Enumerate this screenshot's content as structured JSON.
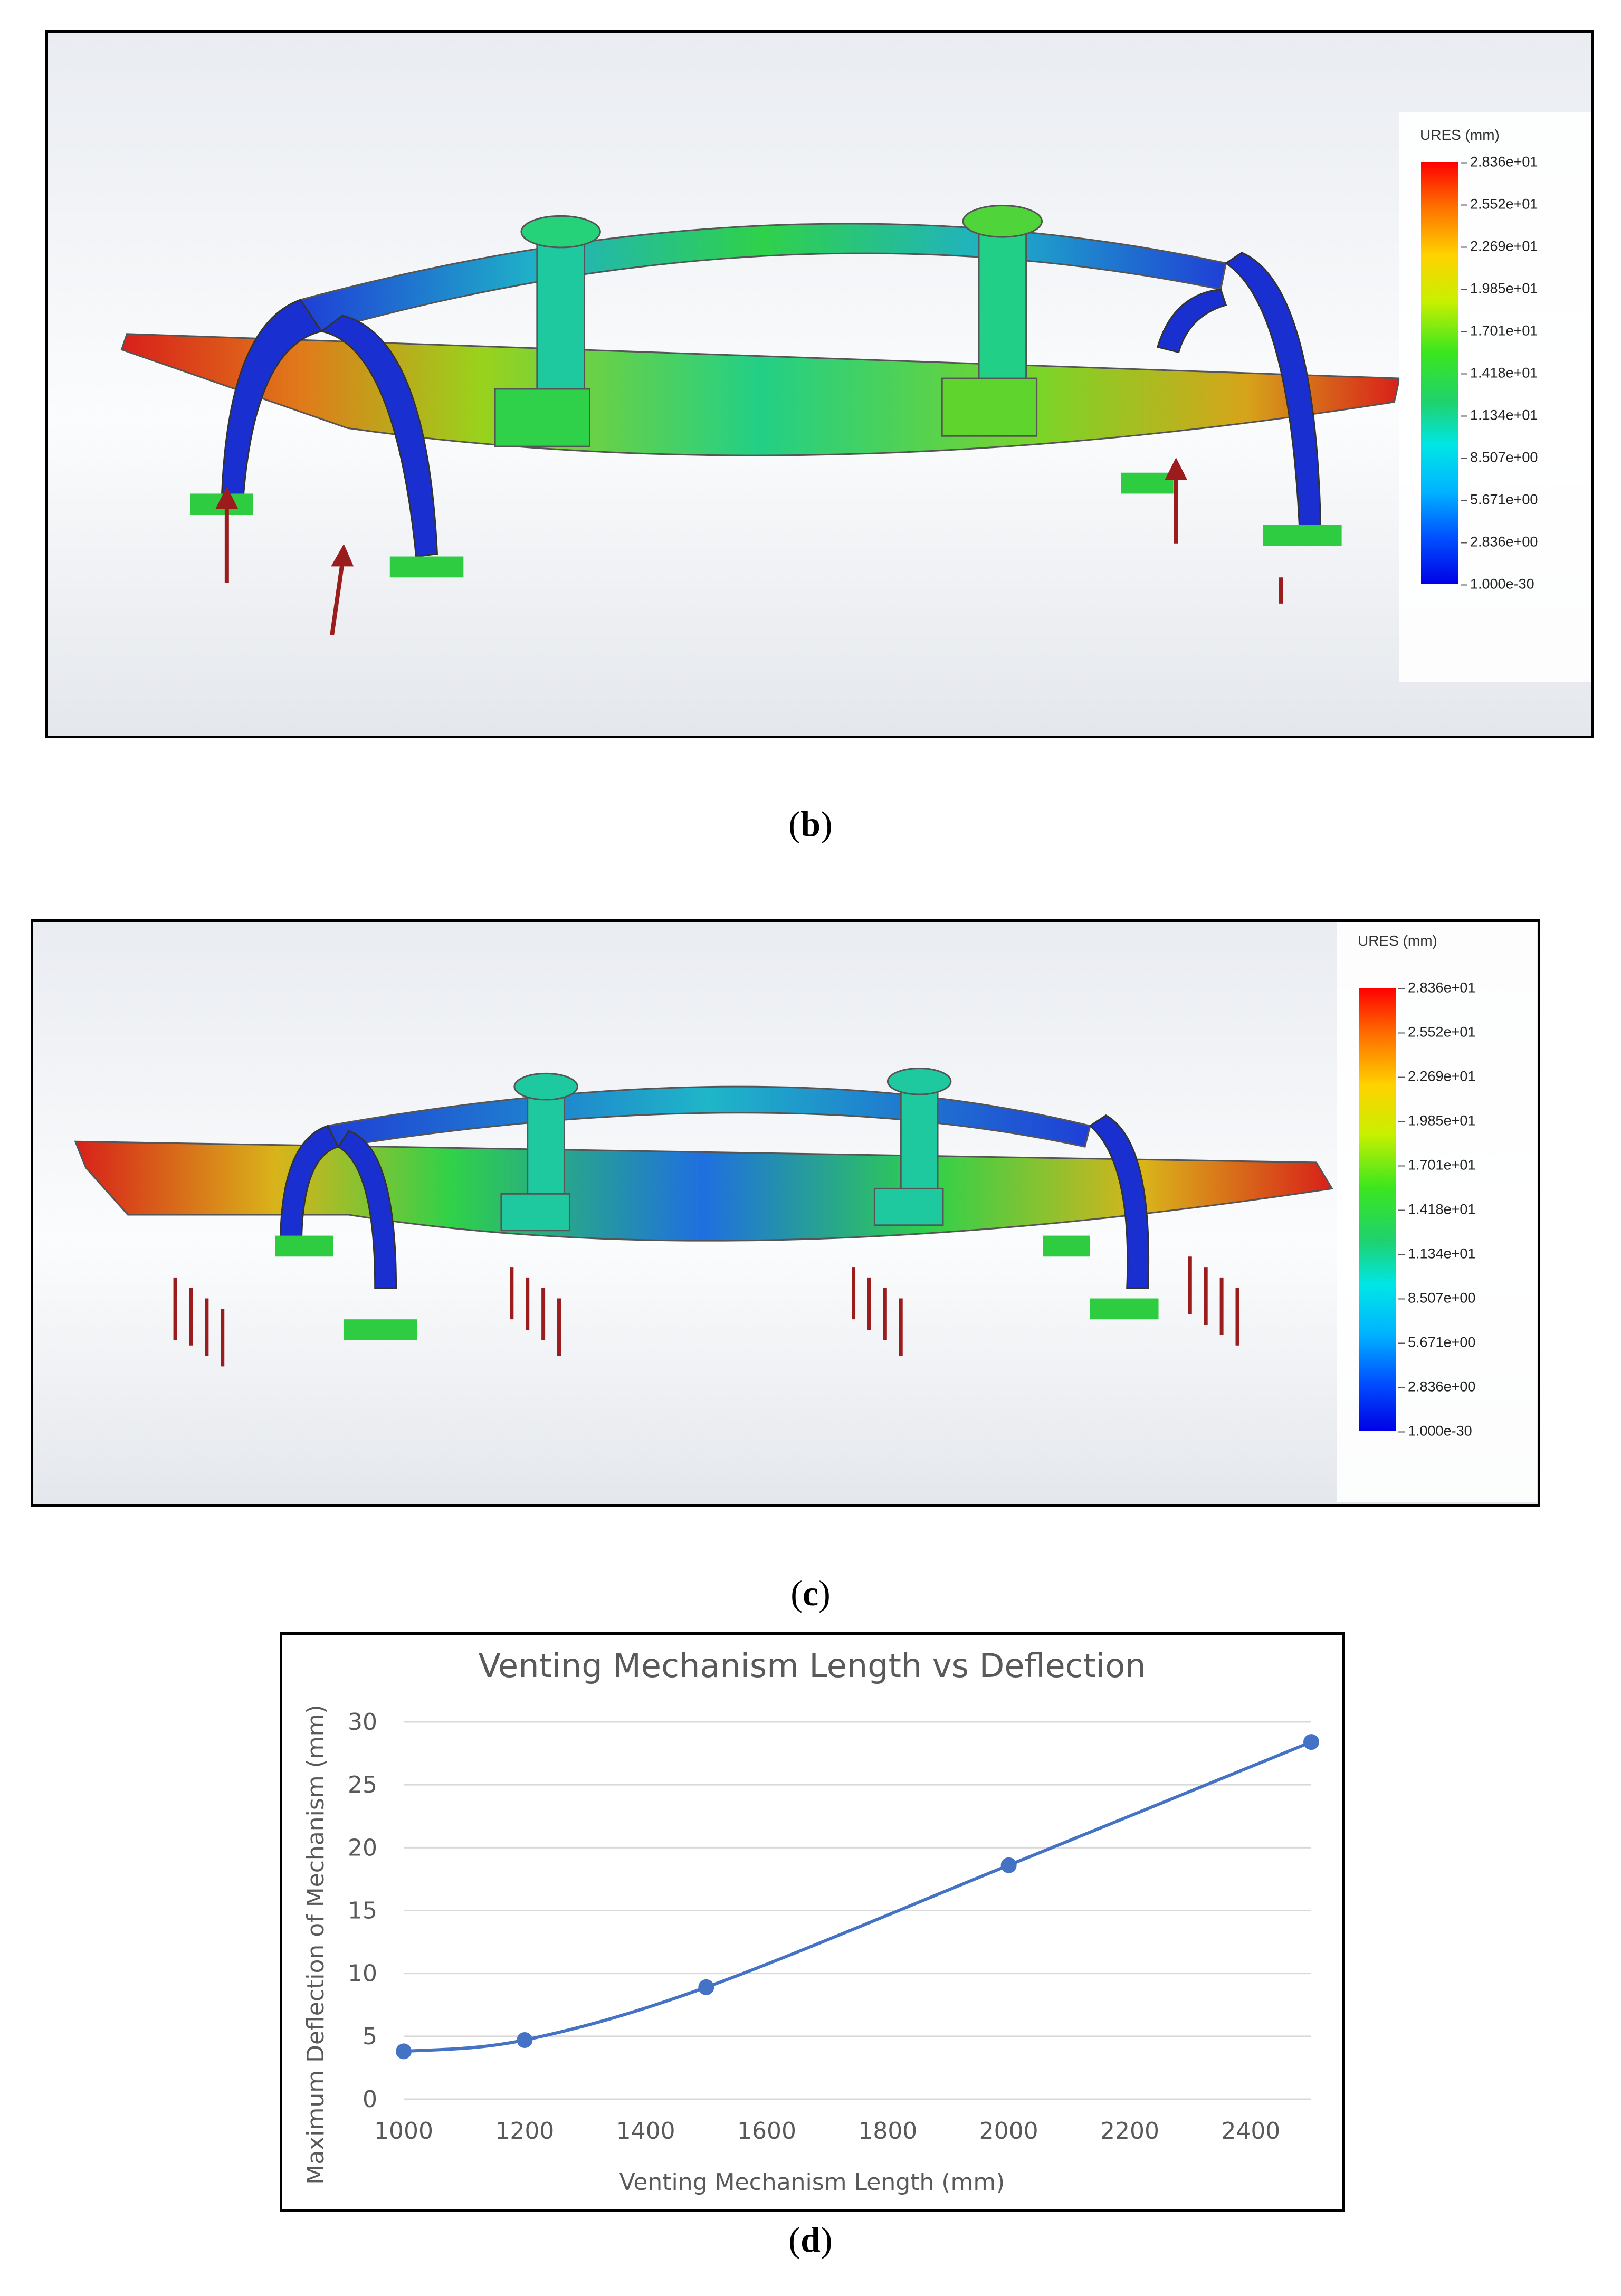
{
  "figure_b": {
    "caption_open": "(",
    "caption_letter": "b",
    "caption_close": ")",
    "legend": {
      "title": "URES (mm)",
      "ticks": [
        "2.836e+01",
        "2.552e+01",
        "2.269e+01",
        "1.985e+01",
        "1.701e+01",
        "1.418e+01",
        "1.134e+01",
        "8.507e+00",
        "5.671e+00",
        "2.836e+00",
        "1.000e-30"
      ]
    }
  },
  "figure_c": {
    "caption_open": "(",
    "caption_letter": "c",
    "caption_close": ")",
    "legend": {
      "title": "URES (mm)",
      "ticks": [
        "2.836e+01",
        "2.552e+01",
        "2.269e+01",
        "1.985e+01",
        "1.701e+01",
        "1.418e+01",
        "1.134e+01",
        "8.507e+00",
        "5.671e+00",
        "2.836e+00",
        "1.000e-30"
      ]
    }
  },
  "figure_d": {
    "caption_open": "(",
    "caption_letter": "d",
    "caption_close": ")"
  },
  "colors": {
    "series_line": "#4472c4",
    "gridline": "#d9d9d9",
    "text": "#595959",
    "load_arrow": "#9b1c1c",
    "fixture": "#2ecc40"
  },
  "chart_data": {
    "type": "line",
    "title": "Venting Mechanism Length vs Deflection",
    "xlabel": "Venting Mechanism Length (mm)",
    "ylabel": "Maximum Deflection of Mechanism (mm)",
    "xlim": [
      1000,
      2500
    ],
    "ylim": [
      0,
      30
    ],
    "xticks": [
      1000,
      1200,
      1400,
      1600,
      1800,
      2000,
      2200,
      2400
    ],
    "yticks": [
      0,
      5,
      10,
      15,
      20,
      25,
      30
    ],
    "grid": "horizontal",
    "legend": "none",
    "series": [
      {
        "x": [
          1000,
          1200,
          1500,
          2000,
          2500
        ],
        "y": [
          3.8,
          4.7,
          8.9,
          18.6,
          28.4
        ]
      }
    ]
  }
}
